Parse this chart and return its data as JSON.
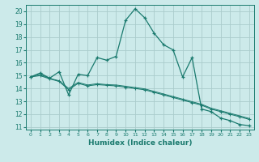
{
  "title": "",
  "xlabel": "Humidex (Indice chaleur)",
  "background_color": "#cceaea",
  "grid_color": "#aacccc",
  "line_color": "#1a7a6e",
  "xlim": [
    -0.5,
    23.5
  ],
  "ylim": [
    10.8,
    20.5
  ],
  "yticks": [
    11,
    12,
    13,
    14,
    15,
    16,
    17,
    18,
    19,
    20
  ],
  "xticks": [
    0,
    1,
    2,
    3,
    4,
    5,
    6,
    7,
    8,
    9,
    10,
    11,
    12,
    13,
    14,
    15,
    16,
    17,
    18,
    19,
    20,
    21,
    22,
    23
  ],
  "line1_x": [
    0,
    1,
    2,
    3,
    4,
    5,
    6,
    7,
    8,
    9,
    10,
    11,
    12,
    13,
    14,
    15,
    16,
    17,
    18,
    19,
    20,
    21,
    22,
    23
  ],
  "line1_y": [
    14.9,
    15.2,
    14.8,
    15.3,
    13.5,
    15.1,
    15.0,
    16.4,
    16.2,
    16.5,
    19.3,
    20.2,
    19.5,
    18.3,
    17.4,
    17.0,
    14.9,
    16.4,
    12.4,
    12.2,
    11.7,
    11.5,
    11.2,
    11.1
  ],
  "line2_x": [
    0,
    1,
    2,
    3,
    4,
    5,
    6,
    7,
    8,
    9,
    10,
    11,
    12,
    13,
    14,
    15,
    16,
    17,
    18,
    19,
    20,
    21,
    22,
    23
  ],
  "line2_y": [
    14.9,
    15.0,
    14.75,
    14.55,
    13.9,
    14.4,
    14.2,
    14.3,
    14.25,
    14.2,
    14.1,
    14.0,
    13.9,
    13.7,
    13.5,
    13.3,
    13.1,
    12.9,
    12.7,
    12.4,
    12.2,
    12.0,
    11.8,
    11.6
  ],
  "line3_x": [
    0,
    1,
    2,
    3,
    4,
    5,
    6,
    7,
    8,
    9,
    10,
    11,
    12,
    13,
    14,
    15,
    16,
    17,
    18,
    19,
    20,
    21,
    22,
    23
  ],
  "line3_y": [
    14.9,
    15.1,
    14.78,
    14.6,
    14.0,
    14.47,
    14.27,
    14.37,
    14.3,
    14.27,
    14.17,
    14.07,
    13.97,
    13.77,
    13.57,
    13.37,
    13.17,
    12.97,
    12.77,
    12.47,
    12.27,
    12.07,
    11.87,
    11.67
  ],
  "tick_fontsize": 5.5,
  "xlabel_fontsize": 6.5
}
